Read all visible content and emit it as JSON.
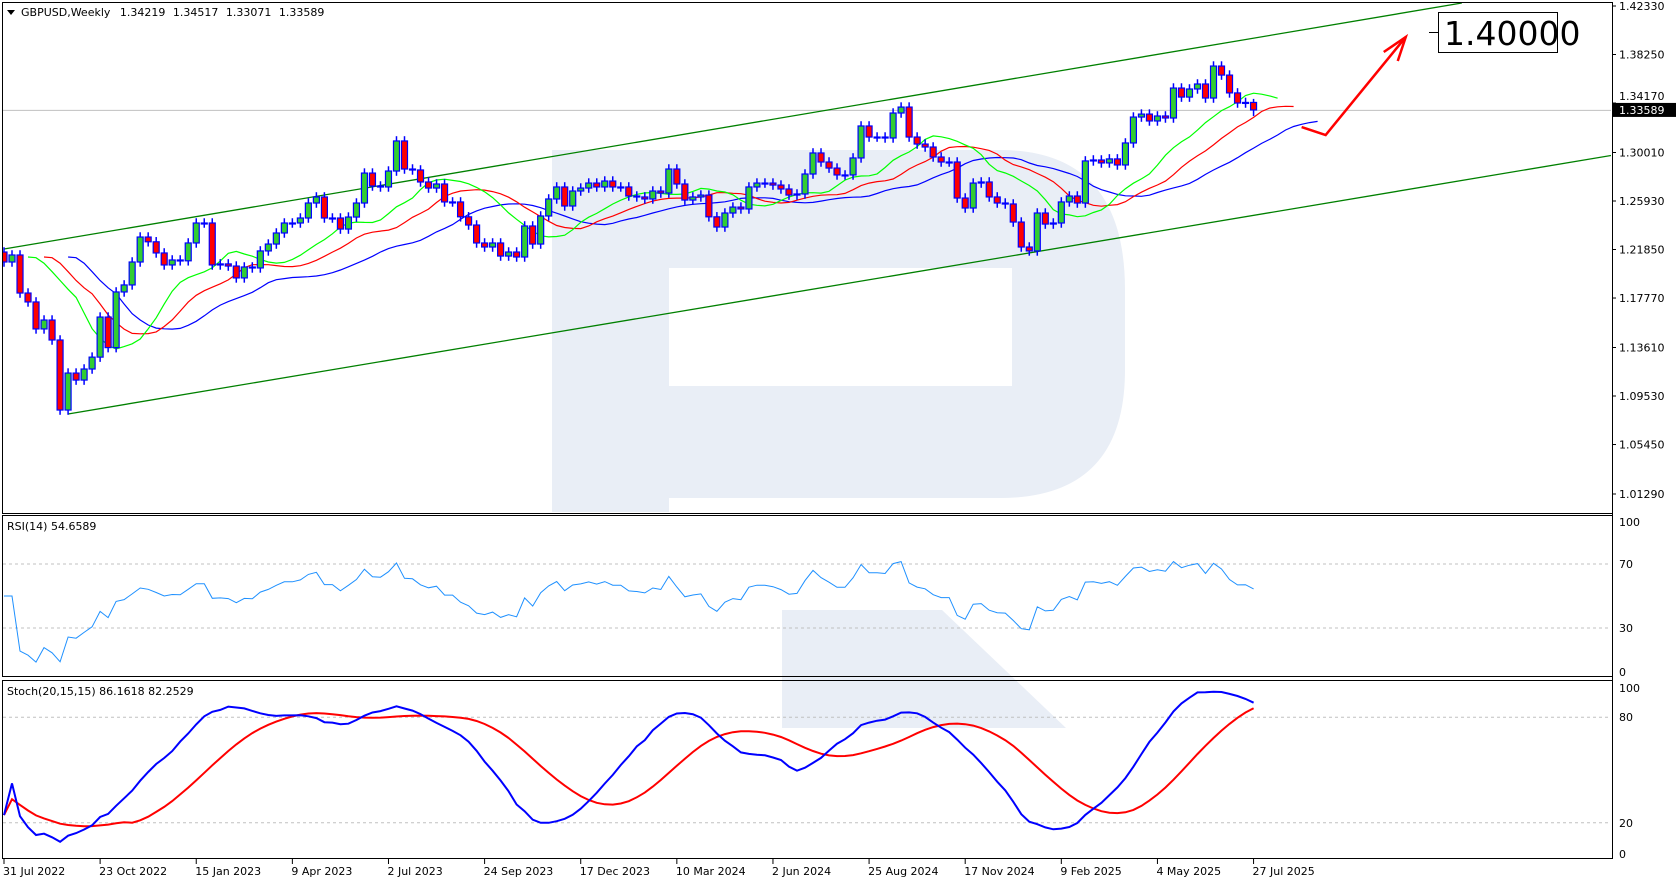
{
  "header": {
    "symbol_timeframe": "GBPUSD,Weekly",
    "open": "1.34219",
    "high": "1.34517",
    "low": "1.33071",
    "close": "1.33589"
  },
  "price_axis": {
    "labels": [
      "1.42330",
      "1.38250",
      "1.34170",
      "1.30010",
      "1.25930",
      "1.21850",
      "1.17770",
      "1.13610",
      "1.09530",
      "1.05450",
      "1.01290"
    ],
    "current_price": "1.33589"
  },
  "rsi_pane": {
    "label": "RSI(14) 54.6589",
    "levels": [
      "100",
      "70",
      "30",
      "0"
    ]
  },
  "stoch_pane": {
    "label": "Stoch(20,15,15) 86.1618 82.2529",
    "levels": [
      "100",
      "80",
      "20",
      "0"
    ]
  },
  "time_axis": {
    "labels": [
      "31 Jul 2022",
      "23 Oct 2022",
      "15 Jan 2023",
      "9 Apr 2023",
      "2 Jul 2023",
      "24 Sep 2023",
      "17 Dec 2023",
      "10 Mar 2024",
      "2 Jun 2024",
      "25 Aug 2024",
      "17 Nov 2024",
      "9 Feb 2025",
      "4 May 2025",
      "27 Jul 2025"
    ]
  },
  "target_label": "1.40000",
  "colors": {
    "bull_body": "#32cd32",
    "bear_body": "#ff0000",
    "candle_outline": "#0000ff",
    "alligator_jaw": "#0000ff",
    "alligator_teeth": "#ff0000",
    "alligator_lips": "#00ff00",
    "channel": "#008000",
    "rsi_line": "#1e90ff",
    "stoch_main": "#0000ff",
    "stoch_signal": "#ff0000",
    "forecast_arrow": "#ff0000",
    "watermark": "#e9eef6"
  },
  "chart_data": {
    "type": "candlestick",
    "symbol": "GBPUSD",
    "timeframe": "Weekly",
    "first_week": "2022-07-31",
    "first_open": 1.2164,
    "closes": [
      1.208,
      1.2139,
      1.1819,
      1.1744,
      1.1517,
      1.1592,
      1.1424,
      1.0835,
      1.1146,
      1.1087,
      1.118,
      1.128,
      1.1617,
      1.136,
      1.1828,
      1.1887,
      1.208,
      1.229,
      1.225,
      1.2156,
      1.2055,
      1.2097,
      1.209,
      1.224,
      1.2408,
      1.2408,
      1.2055,
      1.2064,
      1.2046,
      1.1946,
      1.2038,
      1.203,
      1.2173,
      1.2231,
      1.2324,
      1.2408,
      1.2408,
      1.245,
      1.2576,
      1.2627,
      1.245,
      1.245,
      1.2357,
      1.2458,
      1.2576,
      1.2828,
      1.2719,
      1.2711,
      1.2845,
      1.3098,
      1.2862,
      1.2854,
      1.2753,
      1.2702,
      1.2736,
      1.2585,
      1.2585,
      1.246,
      1.2391,
      1.224,
      1.2206,
      1.224,
      1.213,
      1.2164,
      1.2122,
      1.2383,
      1.2231,
      1.2467,
      1.261,
      1.2711,
      1.2551,
      1.2677,
      1.2702,
      1.2744,
      1.2711,
      1.2761,
      1.2711,
      1.2711,
      1.2635,
      1.2627,
      1.261,
      1.2677,
      1.266,
      1.2862,
      1.2736,
      1.2601,
      1.2627,
      1.2643,
      1.246,
      1.2374,
      1.2492,
      1.2542,
      1.2526,
      1.2711,
      1.2744,
      1.2744,
      1.2727,
      1.2694,
      1.2643,
      1.2652,
      1.282,
      1.2997,
      1.2921,
      1.287,
      1.2812,
      1.2812,
      1.2955,
      1.3224,
      1.3131,
      1.3131,
      1.3123,
      1.3333,
      1.3383,
      1.3131,
      1.3072,
      1.3047,
      1.2963,
      1.2921,
      1.2921,
      1.2618,
      1.2534,
      1.2744,
      1.2753,
      1.2627,
      1.2576,
      1.2568,
      1.2416,
      1.2206,
      1.2173,
      1.2492,
      1.2399,
      1.2408,
      1.2585,
      1.2635,
      1.2576,
      1.293,
      1.2938,
      1.2913,
      1.2947,
      1.2896,
      1.3081,
      1.3299,
      1.3324,
      1.3266,
      1.3308,
      1.3291,
      1.3543,
      1.3467,
      1.3535,
      1.3577,
      1.3459,
      1.3728,
      1.3652,
      1.3502,
      1.3417,
      1.3422,
      1.33589
    ],
    "last_candle": {
      "open": 1.34219,
      "high": 1.34517,
      "low": 1.33071,
      "close": 1.33589
    },
    "channel": {
      "upper": [
        [
          "2022-07-31",
          1.2189
        ],
        [
          "2026-01-25",
          1.4258
        ]
      ],
      "lower": [
        [
          "2022-09-25",
          1.0802
        ],
        [
          "2026-06-07",
          1.298
        ]
      ]
    },
    "forecast_arrow": [
      [
        "2025-09-07",
        1.3215
      ],
      [
        "2025-09-28",
        1.3148
      ],
      [
        "2025-12-07",
        1.3972
      ]
    ],
    "target_price": 1.4,
    "price_range": [
      1.0129,
      1.4233
    ],
    "rsi_levels": [
      30,
      70
    ],
    "stoch_levels": [
      20,
      80
    ]
  }
}
